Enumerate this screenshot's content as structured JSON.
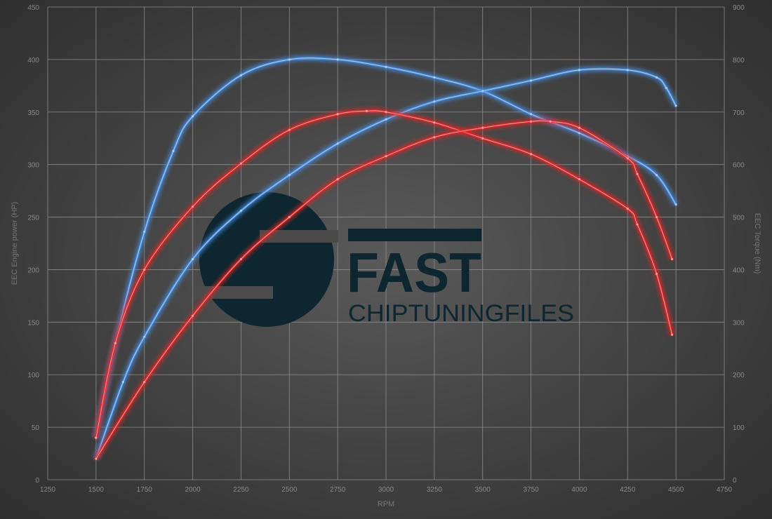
{
  "chart_data": {
    "type": "line",
    "title": "",
    "xlabel": "RPM",
    "ylabel_left": "EEC Engine power (HP)",
    "ylabel_right": "EEC Torque (Nm)",
    "xlim": [
      1250,
      4750
    ],
    "ylim_left": [
      0,
      450
    ],
    "ylim_right": [
      0,
      900
    ],
    "x_ticks": [
      1250,
      1500,
      1750,
      2000,
      2250,
      2500,
      2750,
      3000,
      3250,
      3500,
      3750,
      4000,
      4250,
      4500,
      4750
    ],
    "y_left_ticks": [
      0,
      50,
      100,
      150,
      200,
      250,
      300,
      350,
      400,
      450
    ],
    "y_right_ticks": [
      0,
      100,
      200,
      300,
      400,
      500,
      600,
      700,
      800,
      900
    ],
    "grid": true,
    "legend": "none",
    "colors": {
      "tuned": "#4a8fe0",
      "stock": "#e02828",
      "logo": "#0d2630"
    },
    "series": [
      {
        "color": "blue",
        "axis": "right",
        "x": [
          1500,
          1600,
          1750,
          1900,
          2000,
          2250,
          2500,
          2750,
          3000,
          3250,
          3500,
          3750,
          4000,
          4250,
          4400,
          4500
        ],
        "y": [
          80,
          260,
          472,
          626,
          692,
          770,
          800,
          800,
          786,
          766,
          740,
          696,
          660,
          616,
          580,
          524
        ]
      },
      {
        "color": "blue",
        "axis": "left",
        "x": [
          1500,
          1640,
          1750,
          2000,
          2250,
          2500,
          2750,
          3000,
          3250,
          3500,
          3750,
          4000,
          4250,
          4400,
          4450,
          4500
        ],
        "y": [
          20,
          93,
          136,
          210,
          256,
          290,
          320,
          343,
          360,
          370,
          380,
          390,
          390,
          383,
          373,
          356
        ]
      },
      {
        "color": "red",
        "axis": "right",
        "x": [
          1500,
          1600,
          1750,
          2000,
          2250,
          2500,
          2750,
          2900,
          3000,
          3250,
          3500,
          3750,
          4000,
          4250,
          4300,
          4400,
          4480
        ],
        "y": [
          80,
          260,
          400,
          520,
          602,
          666,
          696,
          702,
          700,
          680,
          650,
          620,
          572,
          516,
          486,
          392,
          276
        ]
      },
      {
        "color": "red",
        "axis": "left",
        "x": [
          1500,
          1750,
          2000,
          2250,
          2500,
          2750,
          3000,
          3250,
          3500,
          3750,
          3850,
          4000,
          4250,
          4300,
          4400,
          4480
        ],
        "y": [
          20,
          93,
          156,
          210,
          250,
          286,
          308,
          326,
          335,
          341,
          341,
          335,
          306,
          291,
          250,
          210
        ]
      }
    ]
  },
  "logo": {
    "line1": "FAST",
    "line2": "CHIPTUNINGFILES"
  }
}
